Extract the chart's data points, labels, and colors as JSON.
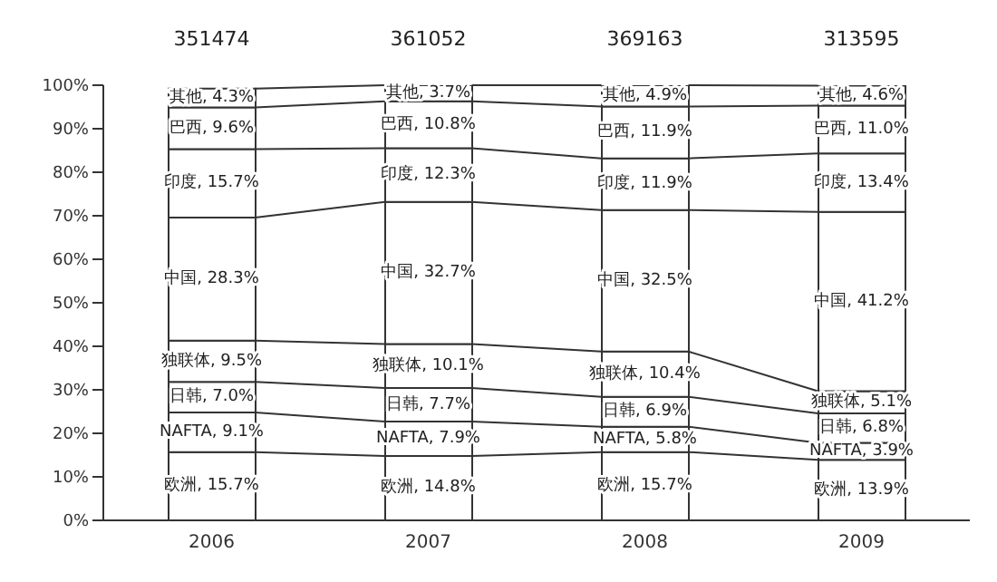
{
  "chart_data": {
    "type": "bar",
    "stacked": true,
    "categories": [
      "2006",
      "2007",
      "2008",
      "2009"
    ],
    "series": [
      {
        "color": "#ffffff",
        "values": [
          15.7,
          14.8,
          15.7,
          13.9
        ],
        "value_labels": [
          "欧洲, 15.7%",
          "欧洲, 14.8%",
          "欧洲, 15.7%",
          "欧洲, 13.9%"
        ]
      },
      {
        "color": "#ffffff",
        "values": [
          9.1,
          7.9,
          5.8,
          3.9
        ],
        "value_labels": [
          "NAFTA, 9.1%",
          "NAFTA, 7.9%",
          "NAFTA, 5.8%",
          "NAFTA, 3.9%"
        ]
      },
      {
        "color": "#ffffff",
        "values": [
          7.0,
          7.7,
          6.9,
          6.8
        ],
        "value_labels": [
          "日韩, 7.0%",
          "日韩, 7.7%",
          "日韩, 6.9%",
          "日韩, 6.8%"
        ]
      },
      {
        "color": "#ffffff",
        "values": [
          9.5,
          10.1,
          10.4,
          5.1
        ],
        "value_labels": [
          "独联体, 9.5%",
          "独联体, 10.1%",
          "独联体, 10.4%",
          "独联体, 5.1%"
        ]
      },
      {
        "color": "#ffffff",
        "values": [
          28.3,
          32.7,
          32.5,
          41.2
        ],
        "value_labels": [
          "中国, 28.3%",
          "中国, 32.7%",
          "中国, 32.5%",
          "中国, 41.2%"
        ]
      },
      {
        "color": "#ffffff",
        "values": [
          15.7,
          12.3,
          11.9,
          13.4
        ],
        "value_labels": [
          "印度, 15.7%",
          "印度, 12.3%",
          "印度, 11.9%",
          "印度, 13.4%"
        ]
      },
      {
        "color": "#ffffff",
        "values": [
          9.6,
          10.8,
          11.9,
          11.0
        ],
        "value_labels": [
          "巴西, 9.6%",
          "巴西, 10.8%",
          "巴西, 11.9%",
          "巴西, 11.0%"
        ]
      },
      {
        "color": "#ffffff",
        "values": [
          4.3,
          3.7,
          4.9,
          4.6
        ],
        "value_labels": [
          "其他, 4.3%",
          "其他, 3.7%",
          "其他, 4.9%",
          "其他, 4.6%"
        ]
      }
    ],
    "annotations": [
      "351474",
      "361052",
      "369163",
      "313595"
    ],
    "ylim": [
      0,
      100
    ],
    "yticks": [
      {
        "value": 0,
        "label": "0%"
      },
      {
        "value": 10,
        "label": "10%"
      },
      {
        "value": 20,
        "label": "20%"
      },
      {
        "value": 30,
        "label": "30%"
      },
      {
        "value": 40,
        "label": "40%"
      },
      {
        "value": 50,
        "label": "50%"
      },
      {
        "value": 60,
        "label": "60%"
      },
      {
        "value": 70,
        "label": "70%"
      },
      {
        "value": 80,
        "label": "80%"
      },
      {
        "value": 90,
        "label": "90%"
      },
      {
        "value": 100,
        "label": "100%"
      }
    ],
    "grid": false,
    "legend": false
  }
}
